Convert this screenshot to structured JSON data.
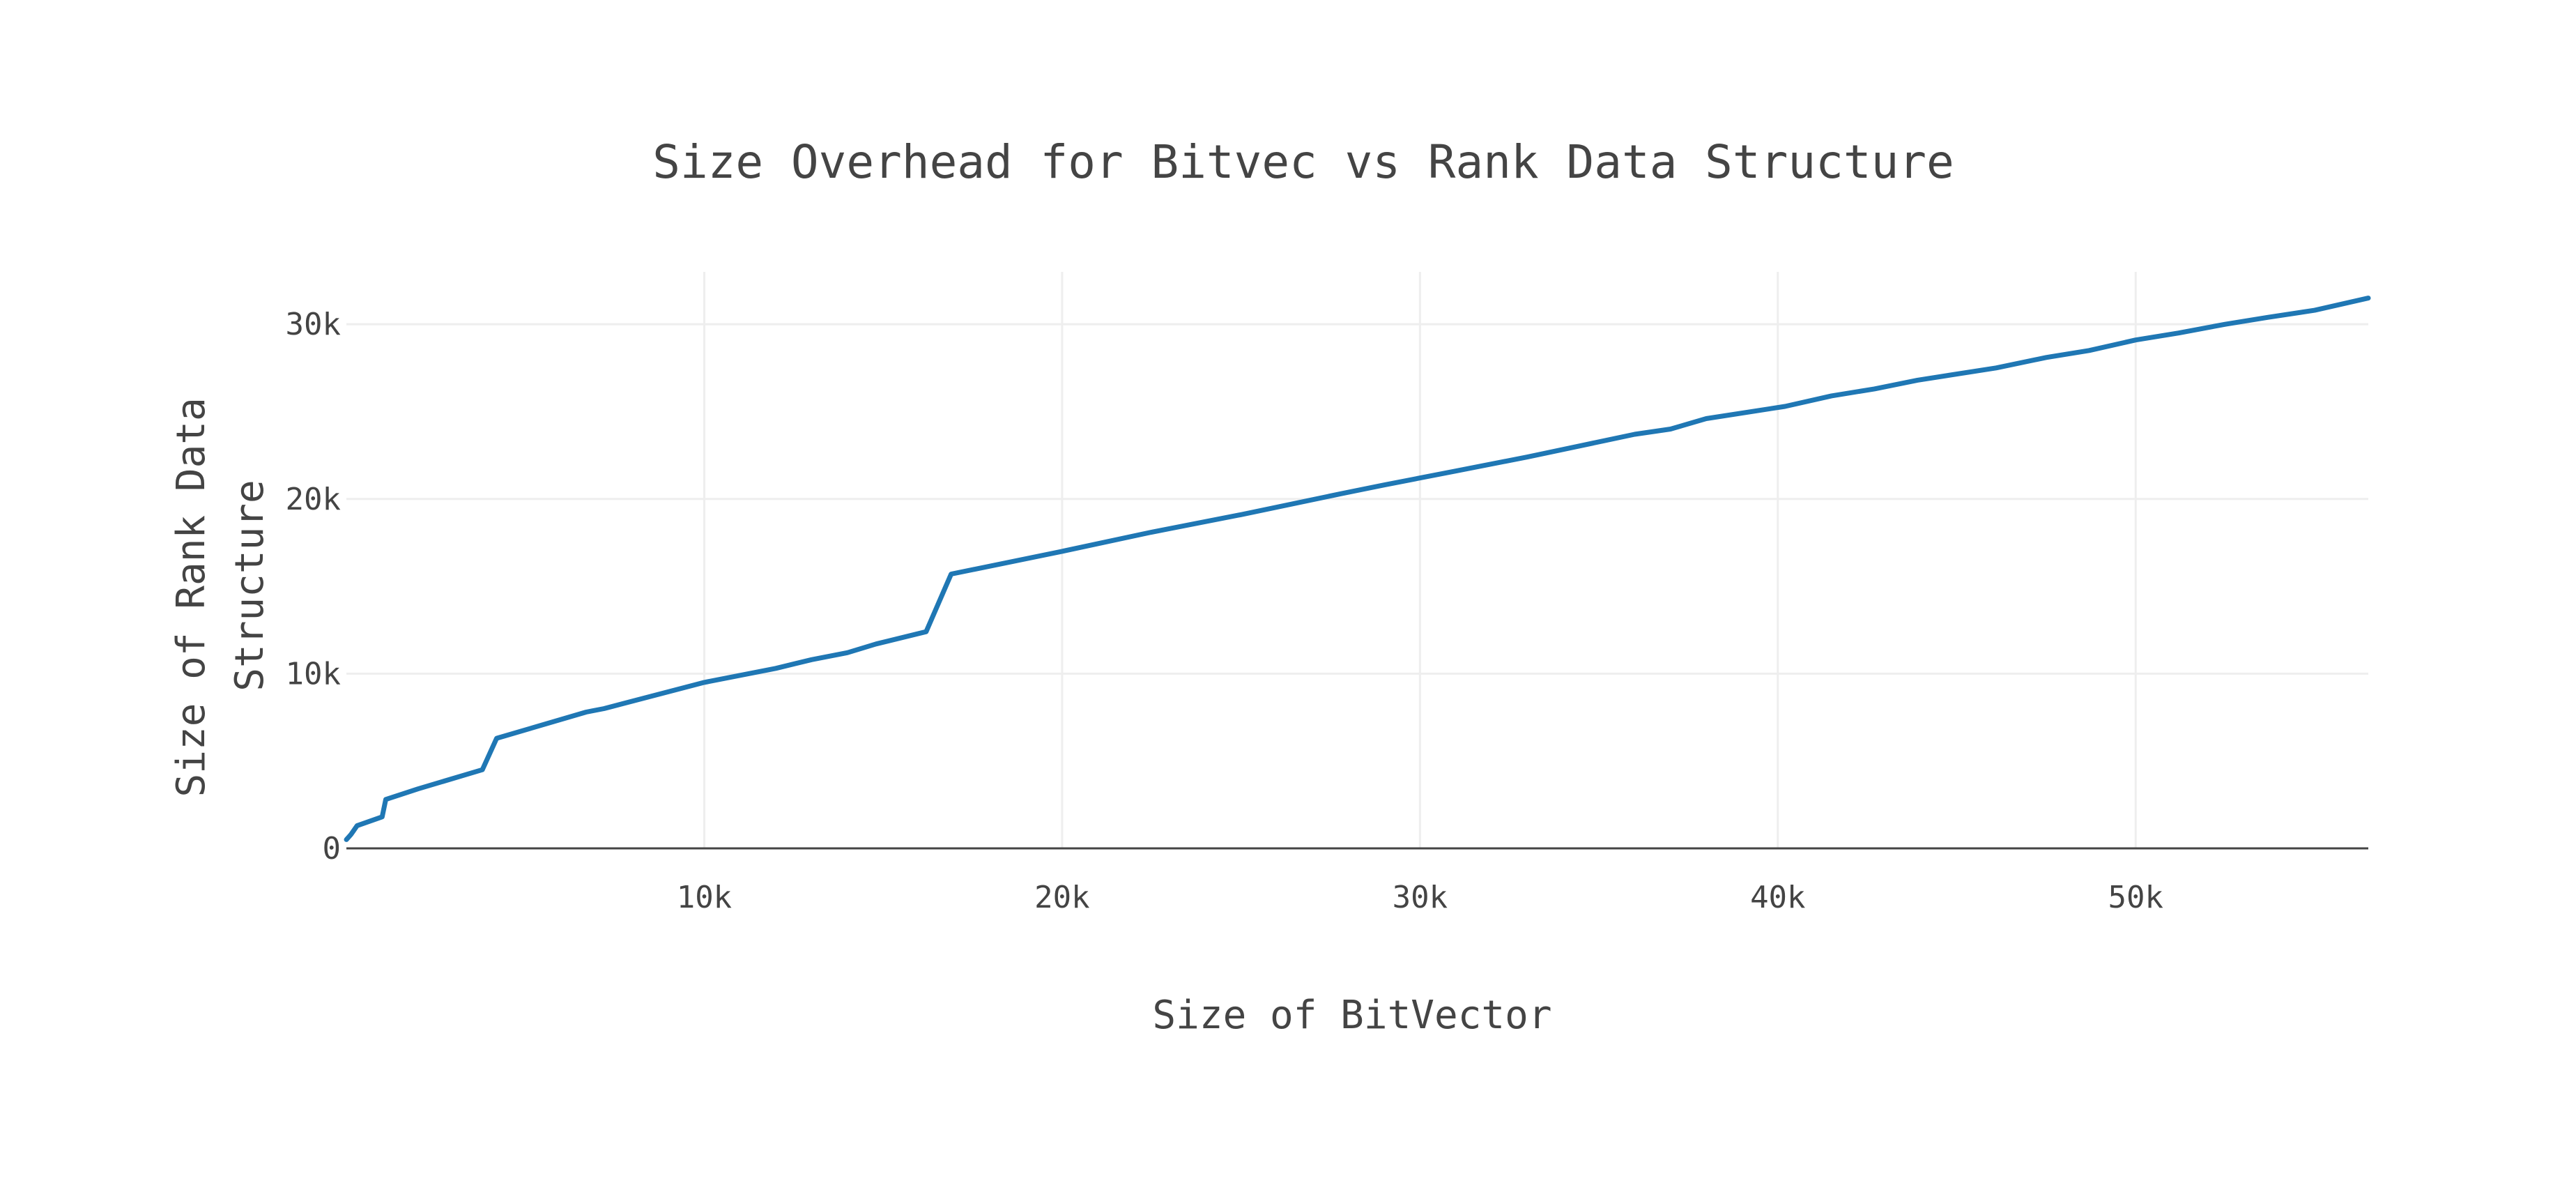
{
  "chart_data": {
    "type": "line",
    "title": "Size Overhead for Bitvec vs Rank Data Structure",
    "xlabel": "Size of BitVector",
    "ylabel_lines": [
      "Size of Rank Data",
      "Structure"
    ],
    "xlim": [
      0,
      56500
    ],
    "ylim": [
      -1000,
      33000
    ],
    "x_ticks": [
      10000,
      20000,
      30000,
      40000,
      50000
    ],
    "x_tick_labels": [
      "10k",
      "20k",
      "30k",
      "40k",
      "50k"
    ],
    "y_ticks": [
      0,
      10000,
      20000,
      30000
    ],
    "y_tick_labels": [
      "0",
      "10k",
      "20k",
      "30k"
    ],
    "grid": true,
    "line_color": "#1f77b4",
    "series": [
      {
        "x": [
          0,
          130,
          300,
          1000,
          1100,
          2000,
          3800,
          4200,
          6700,
          7200,
          10000,
          12000,
          13000,
          14000,
          14800,
          16200,
          16900,
          20000,
          22500,
          25000,
          27800,
          29000,
          31000,
          33000,
          36000,
          37000,
          38000,
          40200,
          41500,
          42700,
          43900,
          46100,
          47500,
          48700,
          50000,
          51200,
          52500,
          53700,
          55000,
          56500
        ],
        "y": [
          500,
          800,
          1300,
          1800,
          2800,
          3400,
          4500,
          6300,
          7800,
          8000,
          9500,
          10300,
          10800,
          11200,
          11700,
          12400,
          15700,
          17000,
          18100,
          19100,
          20300,
          20800,
          21600,
          22400,
          23700,
          24000,
          24600,
          25300,
          25900,
          26300,
          26800,
          27500,
          28100,
          28500,
          29100,
          29500,
          30000,
          30400,
          30800,
          31500
        ]
      }
    ]
  }
}
